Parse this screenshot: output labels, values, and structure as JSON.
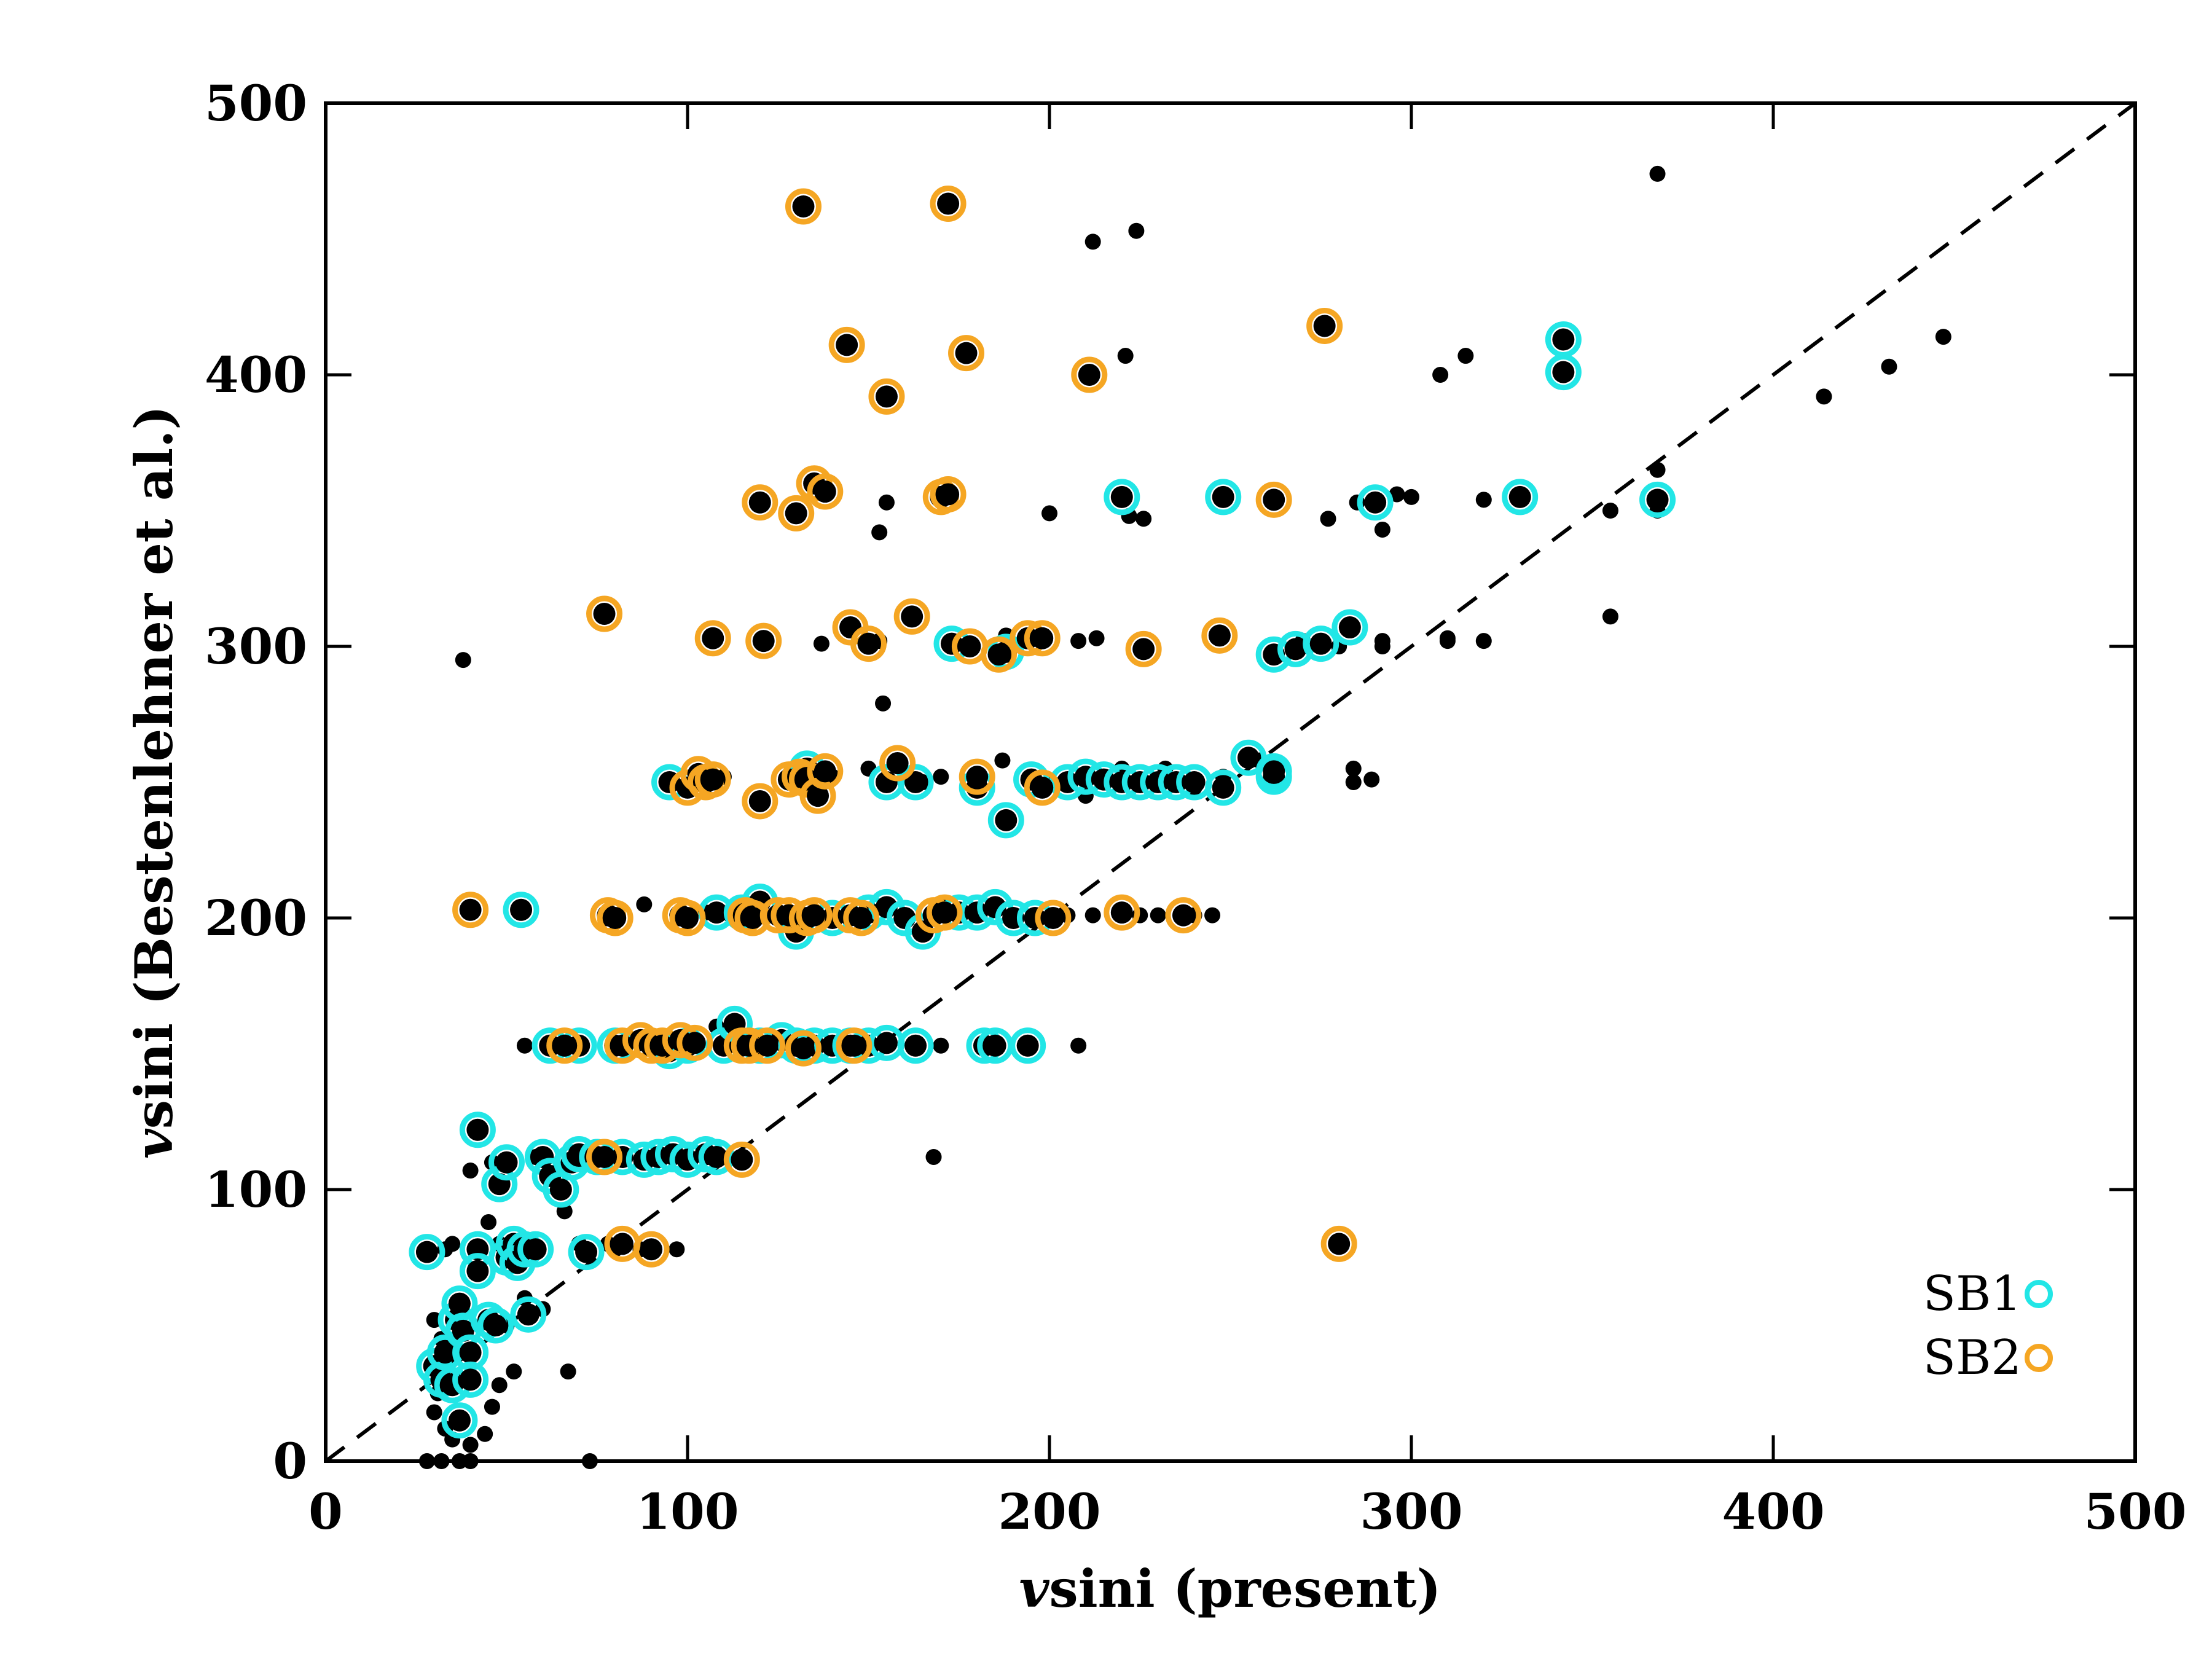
{
  "chart_data": {
    "type": "scatter",
    "xlabel": {
      "var": "v",
      "text": "sini (present)"
    },
    "ylabel": {
      "var": "v",
      "text": "sini (Bestenlehner et al.)"
    },
    "xlim": [
      0,
      500
    ],
    "ylim": [
      0,
      500
    ],
    "xticks": [
      "0",
      "100",
      "200",
      "300",
      "400",
      "500"
    ],
    "yticks": [
      "0",
      "100",
      "200",
      "300",
      "400",
      "500"
    ],
    "grid": false,
    "legend": {
      "placement": "bottom-right"
    },
    "reference_line": {
      "style": "dashed",
      "from": [
        0,
        0
      ],
      "to": [
        500,
        500
      ]
    },
    "series": [
      {
        "name": "",
        "marker": "filled-dot",
        "color": "#000000",
        "points": [
          [
            38,
            295
          ],
          [
            40,
            107
          ],
          [
            45,
            88
          ],
          [
            48,
            80
          ],
          [
            50,
            75
          ],
          [
            35,
            80
          ],
          [
            33,
            78
          ],
          [
            30,
            52
          ],
          [
            32,
            45
          ],
          [
            34,
            38
          ],
          [
            36,
            30
          ],
          [
            31,
            25
          ],
          [
            30,
            18
          ],
          [
            33,
            12
          ],
          [
            35,
            8
          ],
          [
            40,
            6
          ],
          [
            44,
            10
          ],
          [
            46,
            20
          ],
          [
            48,
            28
          ],
          [
            52,
            33
          ],
          [
            50,
            50
          ],
          [
            55,
            60
          ],
          [
            60,
            56
          ],
          [
            66,
            92
          ],
          [
            67,
            33
          ],
          [
            70,
            80
          ],
          [
            28,
            0
          ],
          [
            32,
            0
          ],
          [
            37,
            0
          ],
          [
            40,
            0
          ],
          [
            73,
            0
          ],
          [
            46,
            110
          ],
          [
            58,
            112
          ],
          [
            62,
            106
          ],
          [
            78,
            80
          ],
          [
            80,
            78
          ],
          [
            87,
            78
          ],
          [
            97,
            78
          ],
          [
            55,
            153
          ],
          [
            80,
            153
          ],
          [
            97,
            153
          ],
          [
            110,
            153
          ],
          [
            120,
            153
          ],
          [
            130,
            153
          ],
          [
            150,
            153
          ],
          [
            155,
            153
          ],
          [
            170,
            153
          ],
          [
            183,
            153
          ],
          [
            208,
            153
          ],
          [
            108,
            160
          ],
          [
            88,
            205
          ],
          [
            105,
            202
          ],
          [
            112,
            201
          ],
          [
            130,
            200
          ],
          [
            150,
            201
          ],
          [
            170,
            205
          ],
          [
            190,
            201
          ],
          [
            205,
            201
          ],
          [
            212,
            201
          ],
          [
            225,
            201
          ],
          [
            230,
            201
          ],
          [
            240,
            201
          ],
          [
            245,
            201
          ],
          [
            130,
            251
          ],
          [
            110,
            252
          ],
          [
            140,
            252
          ],
          [
            150,
            255
          ],
          [
            165,
            250
          ],
          [
            170,
            252
          ],
          [
            180,
            252
          ],
          [
            187,
            258
          ],
          [
            200,
            250
          ],
          [
            210,
            245
          ],
          [
            220,
            255
          ],
          [
            225,
            250
          ],
          [
            232,
            255
          ],
          [
            240,
            248
          ],
          [
            248,
            252
          ],
          [
            258,
            258
          ],
          [
            284,
            255
          ],
          [
            284,
            250
          ],
          [
            289,
            251
          ],
          [
            154,
            279
          ],
          [
            137,
            301
          ],
          [
            153,
            302
          ],
          [
            188,
            304
          ],
          [
            208,
            302
          ],
          [
            213,
            303
          ],
          [
            270,
            302
          ],
          [
            280,
            300
          ],
          [
            292,
            302
          ],
          [
            292,
            300
          ],
          [
            310,
            303
          ],
          [
            310,
            302
          ],
          [
            320,
            302
          ],
          [
            153,
            342
          ],
          [
            155,
            353
          ],
          [
            200,
            349
          ],
          [
            222,
            348
          ],
          [
            226,
            347
          ],
          [
            277,
            347
          ],
          [
            285,
            353
          ],
          [
            292,
            343
          ],
          [
            296,
            356
          ],
          [
            300,
            355
          ],
          [
            320,
            354
          ],
          [
            355,
            350
          ],
          [
            368,
            365
          ],
          [
            368,
            350
          ],
          [
            355,
            311
          ],
          [
            212,
            449
          ],
          [
            224,
            453
          ],
          [
            221,
            407
          ],
          [
            308,
            400
          ],
          [
            315,
            407
          ],
          [
            368,
            474
          ],
          [
            414,
            392
          ],
          [
            432,
            403
          ],
          [
            447,
            414
          ],
          [
            168,
            112
          ],
          [
            280,
            80
          ]
        ]
      },
      {
        "name": "SB1",
        "marker": "open-circle",
        "color": "#22e6e6",
        "points": [
          [
            28,
            77
          ],
          [
            30,
            35
          ],
          [
            32,
            30
          ],
          [
            33,
            40
          ],
          [
            35,
            28
          ],
          [
            36,
            52
          ],
          [
            37,
            58
          ],
          [
            37,
            15
          ],
          [
            38,
            48
          ],
          [
            40,
            40
          ],
          [
            40,
            30
          ],
          [
            42,
            78
          ],
          [
            42,
            70
          ],
          [
            42,
            122
          ],
          [
            45,
            52
          ],
          [
            47,
            50
          ],
          [
            48,
            102
          ],
          [
            50,
            110
          ],
          [
            50,
            75
          ],
          [
            52,
            80
          ],
          [
            53,
            73
          ],
          [
            55,
            78
          ],
          [
            56,
            54
          ],
          [
            58,
            78
          ],
          [
            60,
            112
          ],
          [
            62,
            105
          ],
          [
            65,
            100
          ],
          [
            68,
            110
          ],
          [
            70,
            113
          ],
          [
            72,
            77
          ],
          [
            54,
            203
          ],
          [
            62,
            153
          ],
          [
            70,
            153
          ],
          [
            80,
            153
          ],
          [
            95,
            151
          ],
          [
            100,
            153
          ],
          [
            110,
            153
          ],
          [
            113,
            161
          ],
          [
            120,
            153
          ],
          [
            126,
            155
          ],
          [
            130,
            153
          ],
          [
            135,
            153
          ],
          [
            140,
            153
          ],
          [
            145,
            153
          ],
          [
            150,
            153
          ],
          [
            155,
            154
          ],
          [
            163,
            153
          ],
          [
            182,
            153
          ],
          [
            185,
            153
          ],
          [
            194,
            153
          ],
          [
            75,
            112
          ],
          [
            82,
            112
          ],
          [
            88,
            111
          ],
          [
            92,
            112
          ],
          [
            96,
            113
          ],
          [
            100,
            111
          ],
          [
            105,
            113
          ],
          [
            108,
            112
          ],
          [
            108,
            202
          ],
          [
            115,
            202
          ],
          [
            120,
            206
          ],
          [
            130,
            195
          ],
          [
            140,
            200
          ],
          [
            150,
            202
          ],
          [
            155,
            204
          ],
          [
            160,
            200
          ],
          [
            165,
            195
          ],
          [
            175,
            202
          ],
          [
            180,
            202
          ],
          [
            185,
            204
          ],
          [
            190,
            200
          ],
          [
            196,
            200
          ],
          [
            95,
            250
          ],
          [
            133,
            255
          ],
          [
            155,
            250
          ],
          [
            163,
            250
          ],
          [
            180,
            248
          ],
          [
            188,
            236
          ],
          [
            195,
            251
          ],
          [
            205,
            250
          ],
          [
            210,
            252
          ],
          [
            215,
            251
          ],
          [
            220,
            250
          ],
          [
            225,
            250
          ],
          [
            230,
            250
          ],
          [
            235,
            250
          ],
          [
            240,
            250
          ],
          [
            248,
            248
          ],
          [
            255,
            259
          ],
          [
            262,
            252
          ],
          [
            262,
            254
          ],
          [
            173,
            301
          ],
          [
            188,
            298
          ],
          [
            262,
            297
          ],
          [
            268,
            299
          ],
          [
            275,
            301
          ],
          [
            283,
            307
          ],
          [
            220,
            355
          ],
          [
            248,
            355
          ],
          [
            290,
            353
          ],
          [
            330,
            355
          ],
          [
            368,
            354
          ],
          [
            342,
            413
          ],
          [
            342,
            401
          ]
        ]
      },
      {
        "name": "SB2",
        "marker": "open-circle",
        "color": "#f5a623",
        "points": [
          [
            132,
            462
          ],
          [
            172,
            463
          ],
          [
            144,
            411
          ],
          [
            177,
            408
          ],
          [
            155,
            392
          ],
          [
            211,
            400
          ],
          [
            276,
            418
          ],
          [
            120,
            353
          ],
          [
            130,
            349
          ],
          [
            135,
            360
          ],
          [
            138,
            357
          ],
          [
            170,
            355
          ],
          [
            172,
            356
          ],
          [
            262,
            354
          ],
          [
            77,
            312
          ],
          [
            107,
            303
          ],
          [
            121,
            302
          ],
          [
            145,
            307
          ],
          [
            150,
            301
          ],
          [
            162,
            311
          ],
          [
            178,
            300
          ],
          [
            186,
            297
          ],
          [
            194,
            303
          ],
          [
            198,
            303
          ],
          [
            226,
            299
          ],
          [
            247,
            304
          ],
          [
            100,
            248
          ],
          [
            103,
            253
          ],
          [
            105,
            250
          ],
          [
            107,
            251
          ],
          [
            120,
            243
          ],
          [
            128,
            251
          ],
          [
            131,
            252
          ],
          [
            133,
            251
          ],
          [
            136,
            245
          ],
          [
            138,
            254
          ],
          [
            158,
            257
          ],
          [
            180,
            252
          ],
          [
            198,
            248
          ],
          [
            40,
            203
          ],
          [
            78,
            201
          ],
          [
            80,
            200
          ],
          [
            98,
            201
          ],
          [
            100,
            200
          ],
          [
            116,
            201
          ],
          [
            118,
            200
          ],
          [
            125,
            201
          ],
          [
            128,
            201
          ],
          [
            133,
            200
          ],
          [
            135,
            201
          ],
          [
            145,
            201
          ],
          [
            148,
            200
          ],
          [
            168,
            201
          ],
          [
            171,
            202
          ],
          [
            201,
            200
          ],
          [
            220,
            202
          ],
          [
            237,
            201
          ],
          [
            66,
            153
          ],
          [
            82,
            153
          ],
          [
            87,
            155
          ],
          [
            90,
            153
          ],
          [
            93,
            153
          ],
          [
            98,
            155
          ],
          [
            102,
            154
          ],
          [
            115,
            153
          ],
          [
            117,
            153
          ],
          [
            122,
            153
          ],
          [
            132,
            152
          ],
          [
            146,
            153
          ],
          [
            77,
            112
          ],
          [
            115,
            111
          ],
          [
            82,
            80
          ],
          [
            90,
            78
          ],
          [
            280,
            80
          ]
        ]
      }
    ]
  }
}
